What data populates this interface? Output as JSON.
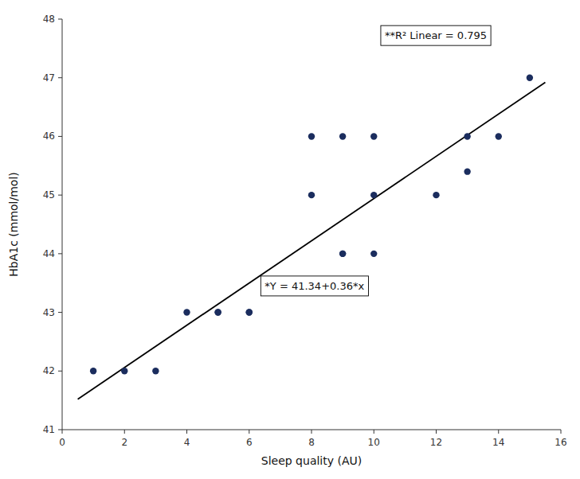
{
  "chart_data": {
    "type": "scatter",
    "x_label": "Sleep quality (AU)",
    "y_label": "HbA1c (mmol/mol)",
    "series": [
      {
        "type": "scatter",
        "color": "#1b2d5e",
        "x": [
          1,
          2,
          3,
          4,
          5,
          5,
          6,
          6,
          8,
          8,
          9,
          9,
          9,
          10,
          10,
          10,
          12,
          13,
          13,
          14,
          15
        ],
        "values": [
          42,
          42,
          42,
          43,
          43,
          43,
          43,
          43,
          45,
          46,
          44,
          44,
          46,
          45,
          44,
          46,
          45,
          46,
          45.4,
          46,
          47
        ]
      },
      {
        "type": "line",
        "color": "#000000",
        "x": [
          0.5,
          15.5
        ],
        "values": [
          41.52,
          46.92
        ]
      }
    ],
    "annotations": [
      {
        "text": "*Y = 41.34+0.36*x",
        "x": 6.5,
        "y": 43.45
      },
      {
        "text": "**R² Linear = 0.795",
        "x": 10.35,
        "y": 47.72
      }
    ],
    "xlim": [
      0,
      16
    ],
    "ylim": [
      41,
      48
    ],
    "xticks": [
      0,
      2,
      4,
      6,
      8,
      10,
      12,
      14,
      16
    ],
    "yticks": [
      41,
      42,
      43,
      44,
      45,
      46,
      47,
      48
    ],
    "grid": false
  }
}
